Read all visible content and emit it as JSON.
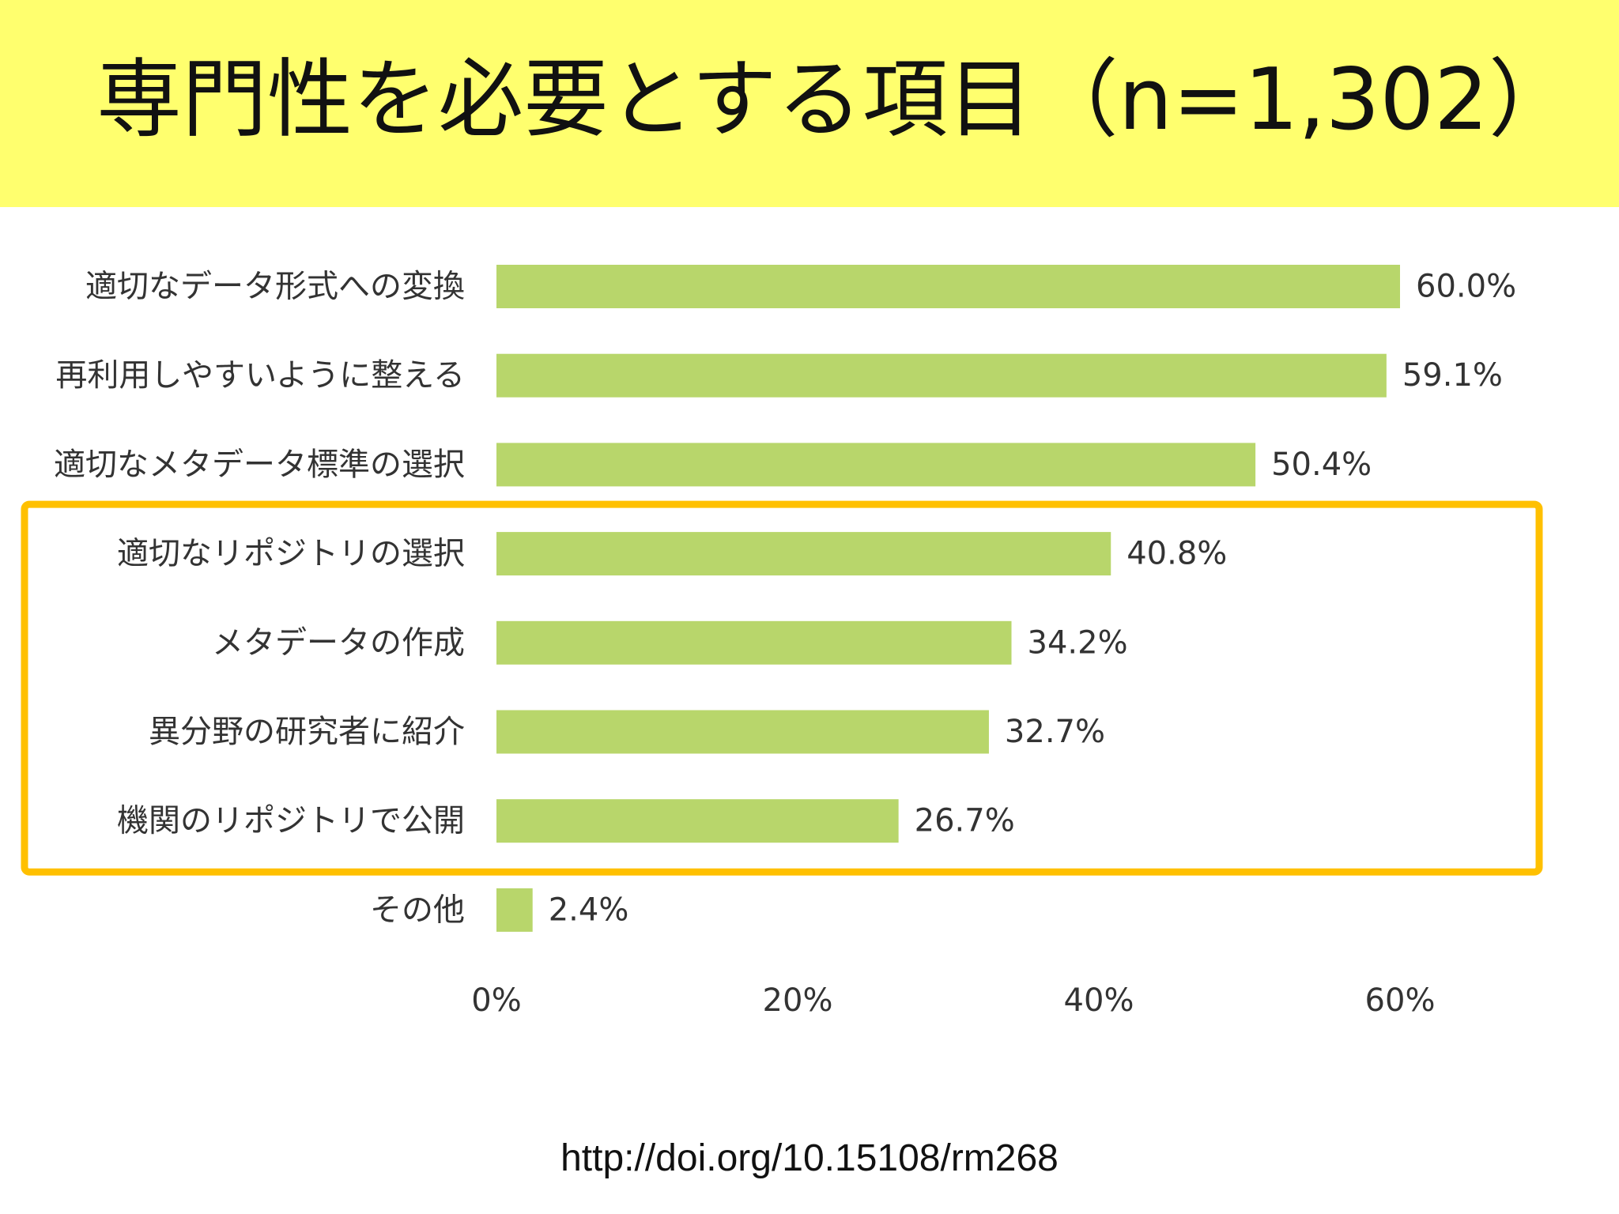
{
  "title": "専門性を必要とする項目（n=1,302）",
  "source_url": "http://doi.org/10.15108/rm268",
  "colors": {
    "title_background": "#ffff6e",
    "bar": "#b8d66b",
    "highlight_border": "#ffc000",
    "text": "#333333"
  },
  "chart_data": {
    "type": "bar",
    "orientation": "horizontal",
    "categories": [
      "適切なデータ形式への変換",
      "再利用しやすいように整える",
      "適切なメタデータ標準の選択",
      "適切なリポジトリの選択",
      "メタデータの作成",
      "異分野の研究者に紹介",
      "機関のリポジトリで公開",
      "その他"
    ],
    "values": [
      60.0,
      59.1,
      50.4,
      40.8,
      34.2,
      32.7,
      26.7,
      2.4
    ],
    "value_labels": [
      "60.0%",
      "59.1%",
      "50.4%",
      "40.8%",
      "34.2%",
      "32.7%",
      "26.7%",
      "2.4%"
    ],
    "xlim": [
      0,
      60
    ],
    "xticks": [
      0,
      20,
      40,
      60
    ],
    "xtick_labels": [
      "0%",
      "20%",
      "40%",
      "60%"
    ],
    "grid": false,
    "highlighted_categories": [
      "適切なリポジトリの選択",
      "メタデータの作成",
      "異分野の研究者に紹介",
      "機関のリポジトリで公開"
    ]
  }
}
